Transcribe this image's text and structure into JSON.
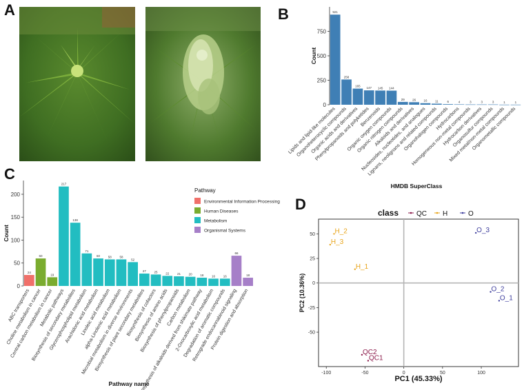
{
  "panels": {
    "a": "A",
    "b": "B",
    "c": "C",
    "d": "D"
  },
  "chart_data": [
    {
      "type": "bar",
      "panel": "B",
      "xlabel": "HMDB SuperClass",
      "ylabel": "Count",
      "ylim": [
        0,
        1000
      ],
      "yticks": [
        0,
        250,
        500,
        750
      ],
      "bar_color": "#3f7fb5",
      "categories": [
        "Lipids and lipid-like molecules",
        "Organoheterocyclic compounds",
        "Organic acids and derivatives",
        "Phenylpropanoids and polyketides",
        "Benzenoids",
        "Organic oxygen compounds",
        "Organic nitrogen compounds",
        "Alkaloids and derivatives",
        "Nucleosides, nucleotides, and analogues",
        "Lignans, neolignans and related compounds",
        "Organohalogen compounds",
        "Hydrocarbons",
        "Homogeneous non-metal compounds",
        "Hydrocarbon derivatives",
        "Organosulfur compounds",
        "Mixed metal/non-metal compounds",
        "Organometallic compounds"
      ],
      "values": [
        921,
        258,
        165,
        147,
        145,
        144,
        29,
        26,
        16,
        11,
        6,
        4,
        3,
        3,
        3,
        1,
        1
      ],
      "value_labels": [
        "921",
        "258",
        "165",
        "147",
        "145",
        "144",
        "29",
        "26",
        "16",
        "11",
        "6",
        "4",
        "3",
        "3",
        "3",
        "1",
        "1"
      ]
    },
    {
      "type": "bar",
      "panel": "C",
      "xlabel": "Pathway name",
      "ylabel": "Count",
      "ylim": [
        0,
        230
      ],
      "yticks": [
        0,
        50,
        100,
        150,
        200
      ],
      "legend": {
        "title": "Pathway",
        "entries": [
          {
            "name": "Environmental Information Processing",
            "color": "#f0706a"
          },
          {
            "name": "Human Diseases",
            "color": "#7aac2f"
          },
          {
            "name": "Metabolism",
            "color": "#22bdc1"
          },
          {
            "name": "Organismal Systems",
            "color": "#a67fc8"
          }
        ]
      },
      "categories": [
        "ABC transporters",
        "Choline metabolism in cancer",
        "Central carbon metabolism in cancer",
        "Metabolic pathways",
        "Biosynthesis of secondary metabolites",
        "Glycerophospholipid metabolism",
        "Arachidonic acid metabolism",
        "Linoleic acid metabolism",
        "alpha-Linolenic acid metabolism",
        "Microbial metabolism in diverse environments",
        "Biosynthesis of plant secondary metabolites",
        "Biosynthesis of cofactors",
        "Biosynthesis of amino acids",
        "Biosynthesis of phenylpropanoids",
        "Carbon metabolism",
        "Biosynthesis of alkaloids derived from shikimate pathway",
        "2-Oxocarboxylic acid metabolism",
        "Degradation of aromatic compounds",
        "Retrograde endocannabinoid signaling",
        "Protein digestion and absorption"
      ],
      "groups": [
        0,
        1,
        1,
        2,
        2,
        2,
        2,
        2,
        2,
        2,
        2,
        2,
        2,
        2,
        2,
        2,
        2,
        2,
        3,
        3
      ],
      "values": [
        24,
        60,
        19,
        217,
        138,
        71,
        60,
        58,
        58,
        52,
        27,
        25,
        22,
        21,
        20,
        18,
        16,
        16,
        66,
        18
      ],
      "value_labels": [
        "24",
        "60",
        "19",
        "217",
        "138",
        "71",
        "60",
        "58",
        "58",
        "52",
        "27",
        "25",
        "22",
        "21",
        "20",
        "18",
        "16",
        "16",
        "66",
        "18"
      ]
    },
    {
      "type": "scatter",
      "panel": "D",
      "xlabel": "PC1 (45.33%)",
      "ylabel": "PC2 (10.36%)",
      "xlim": [
        -110,
        148
      ],
      "ylim": [
        -85,
        65
      ],
      "xticks": [
        -100,
        -50,
        0,
        50,
        100
      ],
      "yticks": [
        -50,
        -25,
        0,
        25,
        50
      ],
      "legend": {
        "title": "class",
        "entries": [
          {
            "name": "QC",
            "color": "#8b1a4a"
          },
          {
            "name": "H",
            "color": "#e8a419"
          },
          {
            "name": "O",
            "color": "#3d3d9c"
          }
        ]
      },
      "points": [
        {
          "label": "H_2",
          "group": 1,
          "x": -90,
          "y": 50
        },
        {
          "label": "H_3",
          "group": 1,
          "x": -95,
          "y": 39
        },
        {
          "label": "H_1",
          "group": 1,
          "x": -63,
          "y": 14
        },
        {
          "label": "O_3",
          "group": 2,
          "x": 93,
          "y": 51
        },
        {
          "label": "O_2",
          "group": 2,
          "x": 112,
          "y": -9
        },
        {
          "label": "O_1",
          "group": 2,
          "x": 123,
          "y": -18
        },
        {
          "label": "QC2",
          "group": 0,
          "x": -54,
          "y": -73
        },
        {
          "label": "QC1",
          "group": 0,
          "x": -46,
          "y": -79
        }
      ]
    }
  ]
}
